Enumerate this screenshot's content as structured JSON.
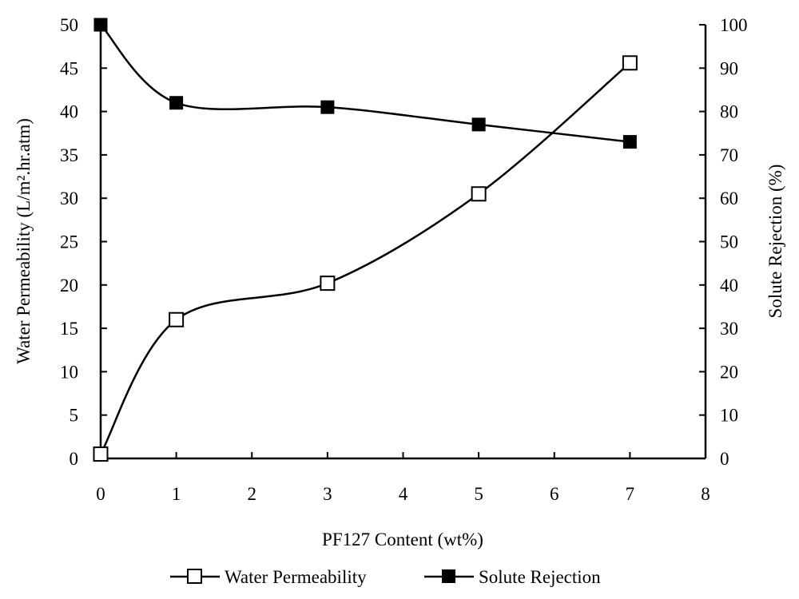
{
  "chart_data": {
    "type": "line",
    "title": "",
    "xlabel": "PF127 Content (wt%)",
    "ylabel": "Water Permeability (L/m².hr.atm)",
    "y2label": "Solute Rejection (%)",
    "xlim": [
      0,
      8
    ],
    "ylim": [
      0,
      50
    ],
    "y2lim": [
      0,
      100
    ],
    "xticks": [
      0,
      1,
      2,
      3,
      4,
      5,
      6,
      7,
      8
    ],
    "yticks": [
      0,
      5,
      10,
      15,
      20,
      25,
      30,
      35,
      40,
      45,
      50
    ],
    "y2ticks": [
      0,
      10,
      20,
      30,
      40,
      50,
      60,
      70,
      80,
      90,
      100
    ],
    "grid": false,
    "legend_position": "bottom",
    "series": [
      {
        "name": "Water Permeability",
        "axis": "left",
        "marker": "open-square",
        "x": [
          0,
          1,
          3,
          5,
          7
        ],
        "values": [
          0.5,
          16,
          20.2,
          30.5,
          45.6
        ]
      },
      {
        "name": "Solute Rejection",
        "axis": "right",
        "marker": "filled-square",
        "x": [
          0,
          1,
          3,
          5,
          7
        ],
        "values": [
          100,
          82,
          81,
          77,
          73
        ]
      }
    ]
  }
}
